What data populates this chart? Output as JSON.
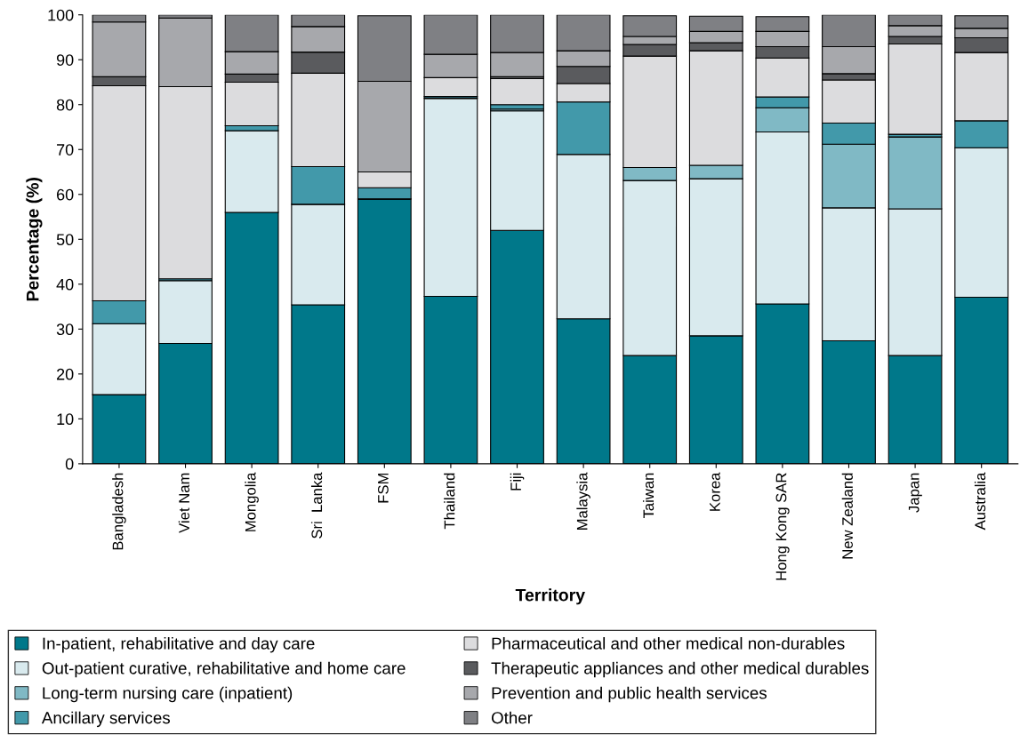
{
  "chart_data": {
    "type": "bar",
    "stacked": true,
    "xlabel": "Territory",
    "ylabel": "Percentage (%)",
    "categories": [
      "Bangladesh",
      "Viet Nam",
      "Mongolia",
      "Sri  Lanka",
      "FSM",
      "Thailand",
      "Fiji",
      "Malaysia",
      "Taiwan",
      "Korea",
      "Hong Kong SAR",
      "New Zealand",
      "Japan",
      "Australia"
    ],
    "series": [
      {
        "name": "In-patient, rehabilitative and day care",
        "color": "#00788a",
        "values": [
          15.4,
          26.8,
          56.0,
          35.4,
          59.0,
          37.3,
          52.0,
          32.3,
          24.1,
          28.5,
          35.6,
          27.4,
          24.1,
          37.1
        ]
      },
      {
        "name": "Out-patient curative, rehabilitative and home care",
        "color": "#d9eaee",
        "values": [
          15.8,
          14.0,
          18.2,
          22.4,
          0,
          44.1,
          26.6,
          36.6,
          39.0,
          35.0,
          38.3,
          29.6,
          32.7,
          33.3
        ]
      },
      {
        "name": "Long-term nursing care (inpatient)",
        "color": "#80b9c5",
        "values": [
          0,
          0,
          0,
          0,
          0,
          0,
          0.4,
          0,
          2.9,
          3.0,
          5.4,
          14.2,
          16.0,
          null
        ]
      },
      {
        "name": "Ancillary services",
        "color": "#4299aa",
        "values": [
          5.1,
          0.4,
          1.1,
          8.4,
          2.5,
          0.4,
          1.0,
          11.7,
          null,
          null,
          2.4,
          4.7,
          0.6,
          6.0
        ]
      },
      {
        "name": "Pharmaceutical and other medical non-durables",
        "color": "#dcdcde",
        "values": [
          47.9,
          42.8,
          9.7,
          20.8,
          3.5,
          4.2,
          5.8,
          4.1,
          24.8,
          25.5,
          8.7,
          9.6,
          20.1,
          15.2
        ]
      },
      {
        "name": "Therapeutic appliances and other medical durables",
        "color": "#5a5b5e",
        "values": [
          2.0,
          0,
          1.8,
          4.7,
          null,
          0,
          0.4,
          3.8,
          2.6,
          1.8,
          2.5,
          1.4,
          1.7,
          3.3
        ]
      },
      {
        "name": "Prevention and public health services",
        "color": "#a7a8ac",
        "values": [
          12.2,
          15.3,
          5.0,
          5.7,
          20.2,
          5.2,
          5.4,
          3.5,
          1.8,
          2.5,
          3.4,
          6.0,
          2.4,
          2.1
        ]
      },
      {
        "name": "Other",
        "color": "#7f8084",
        "values": [
          1.6,
          0.7,
          8.2,
          2.6,
          14.6,
          8.8,
          8.4,
          8.0,
          4.6,
          3.4,
          3.3,
          7.1,
          2.4,
          2.8
        ]
      }
    ],
    "ylim": [
      0,
      100
    ],
    "yticks": [
      0,
      10,
      20,
      30,
      40,
      50,
      60,
      70,
      80,
      90,
      100
    ],
    "grid": false,
    "legend": "bottom"
  }
}
